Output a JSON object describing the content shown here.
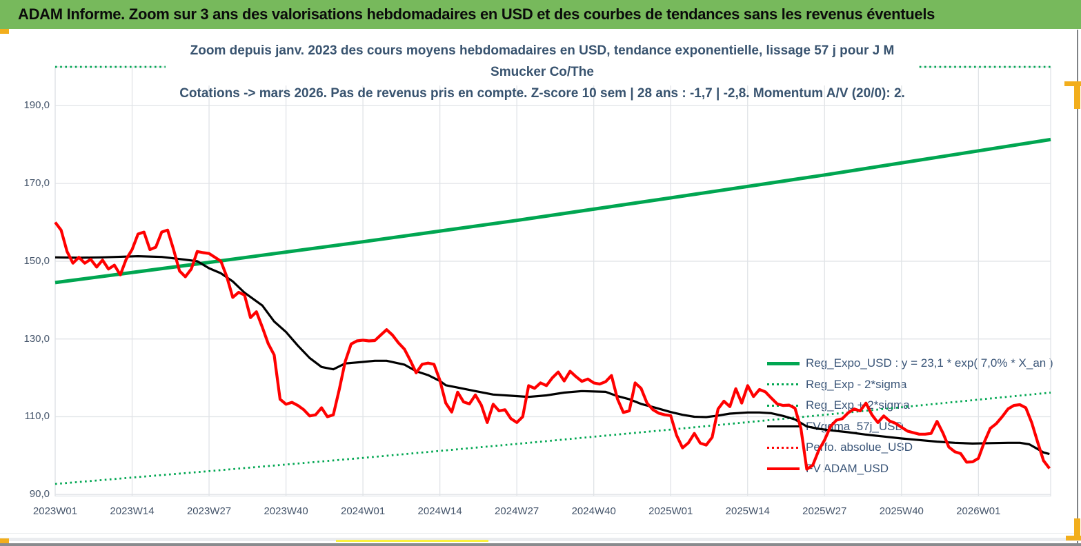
{
  "header": {
    "title": "ADAM Informe. Zoom sur 3 ans des valorisations hebdomadaires en USD et des courbes de tendances sans les revenus éventuels"
  },
  "chart": {
    "title_line1": "Zoom depuis janv. 2023 des cours moyens hebdomadaires en USD, tendance exponentielle, lissage 57 j pour J M Smucker Co/The",
    "title_line2": "Cotations -> mars 2026. Pas de revenus pris en compte. Z-score 10 sem | 28 ans : -1,7 | -2,8. Momentum A/V (20/0): 2."
  },
  "chart_data": {
    "type": "line",
    "title": "Zoom depuis janv. 2023 des cours moyens hebdomadaires en USD, tendance exponentielle, lissage 57 j pour J M Smucker Co/The Cotations -> mars 2026. Pas de revenus pris en compte. Z-score 10 sem | 28 ans : -1,7 | -2,8. Momentum A/V (20/0): 2.",
    "x_unit": "weeks since 2023W01 (weekly cotations, horizon mars 2026)",
    "x_tick_labels": [
      "2023W01",
      "2023W14",
      "2023W27",
      "2023W40",
      "2024W01",
      "2024W14",
      "2024W27",
      "2024W40",
      "2025W01",
      "2025W14",
      "2025W27",
      "2025W40",
      "2026W01"
    ],
    "x_tick_weeks": [
      0,
      13,
      26,
      39,
      52,
      65,
      78,
      91,
      104,
      117,
      130,
      143,
      156
    ],
    "x_range_weeks": [
      0,
      168.2
    ],
    "y_ticks": [
      190,
      170,
      150,
      130,
      110,
      90
    ],
    "y_tick_labels": [
      "190,0",
      "170,0",
      "150,0",
      "130,0",
      "110,0",
      "90,0"
    ],
    "y_axis_range": [
      90,
      190
    ],
    "y_plot_clip": [
      89.6,
      200
    ],
    "grid": true,
    "legend_position": "inside-right",
    "colors": {
      "grid": "#E0E3E7",
      "green": "#00A651",
      "red": "#FF0000",
      "black": "#000000",
      "text": "#3A5578"
    },
    "series": [
      {
        "id": "reg-expo-line",
        "name": "Reg_Expo_USD : y = 23,1 * exp( 7,0% *  X_an )",
        "color": "#00A651",
        "style": "solid",
        "width": 5,
        "points": [
          [
            0,
            144.5
          ],
          [
            26,
            149.7
          ],
          [
            52,
            155.0
          ],
          [
            78,
            160.5
          ],
          [
            104,
            166.3
          ],
          [
            130,
            172.2
          ],
          [
            156,
            178.4
          ],
          [
            168.2,
            181.3
          ]
        ]
      },
      {
        "id": "reg-exp-minus-2sigma-line",
        "name": "Reg_Exp - 2*sigma",
        "color": "#00A651",
        "style": "dotted",
        "width": 2.8,
        "points": [
          [
            0,
            92.7
          ],
          [
            26,
            96.0
          ],
          [
            52,
            99.4
          ],
          [
            78,
            103.0
          ],
          [
            104,
            106.7
          ],
          [
            130,
            110.5
          ],
          [
            156,
            114.4
          ],
          [
            168.2,
            116.2
          ]
        ]
      },
      {
        "id": "reg-exp-plus-2sigma-line",
        "name": "Reg_Exp + 2*sigma",
        "color": "#00A651",
        "style": "dotted",
        "width": 2.8,
        "note": "line lies above plot max, clipped flat at top of plot (~200), hidden behind title box in the middle",
        "points": [
          [
            0,
            200
          ],
          [
            168.2,
            200
          ]
        ]
      },
      {
        "id": "fvgdma-57j-line",
        "name": "FVgdma_57j_USD",
        "color": "#000000",
        "style": "solid",
        "width": 3.2,
        "points": [
          [
            0,
            151.0
          ],
          [
            4,
            150.9
          ],
          [
            8,
            151.0
          ],
          [
            12,
            151.2
          ],
          [
            14,
            151.3
          ],
          [
            18,
            151.1
          ],
          [
            22,
            150.4
          ],
          [
            24,
            150.0
          ],
          [
            26,
            148.2
          ],
          [
            28,
            146.9
          ],
          [
            30,
            144.8
          ],
          [
            32,
            141.9
          ],
          [
            35,
            138.6
          ],
          [
            37,
            134.5
          ],
          [
            39,
            131.8
          ],
          [
            41,
            128.3
          ],
          [
            43,
            125.1
          ],
          [
            45,
            122.8
          ],
          [
            47,
            122.2
          ],
          [
            49,
            123.7
          ],
          [
            52,
            124.1
          ],
          [
            54,
            124.4
          ],
          [
            56,
            124.4
          ],
          [
            59,
            123.4
          ],
          [
            61,
            121.7
          ],
          [
            63,
            120.7
          ],
          [
            65,
            119.2
          ],
          [
            66,
            118.1
          ],
          [
            68,
            117.5
          ],
          [
            71,
            116.6
          ],
          [
            74,
            115.7
          ],
          [
            77,
            115.4
          ],
          [
            80,
            115.1
          ],
          [
            83,
            115.5
          ],
          [
            86,
            116.2
          ],
          [
            89,
            116.6
          ],
          [
            93,
            116.4
          ],
          [
            95,
            115.3
          ],
          [
            97,
            114.5
          ],
          [
            99,
            113.3
          ],
          [
            101,
            112.5
          ],
          [
            104,
            111.2
          ],
          [
            106,
            110.5
          ],
          [
            108,
            110.0
          ],
          [
            110,
            109.9
          ],
          [
            112,
            110.3
          ],
          [
            114,
            110.8
          ],
          [
            117,
            111.1
          ],
          [
            119,
            111.1
          ],
          [
            121,
            110.9
          ],
          [
            123,
            110.2
          ],
          [
            125,
            109.3
          ],
          [
            127,
            107.5
          ],
          [
            129,
            106.9
          ],
          [
            131,
            106.5
          ],
          [
            134,
            106.0
          ],
          [
            137,
            105.4
          ],
          [
            140,
            104.9
          ],
          [
            143,
            104.4
          ],
          [
            146,
            104.0
          ],
          [
            149,
            103.6
          ],
          [
            152,
            103.3
          ],
          [
            155,
            103.1
          ],
          [
            158,
            103.2
          ],
          [
            161,
            103.3
          ],
          [
            163,
            103.3
          ],
          [
            164.6,
            102.9
          ],
          [
            166,
            101.7
          ],
          [
            167,
            100.8
          ],
          [
            168,
            100.4
          ]
        ]
      },
      {
        "id": "perfo-absolue-line",
        "name": "Perfo. absolue_USD",
        "color": "#FF0000",
        "style": "dotted",
        "width": 2.8,
        "note": "coincides with FV ADAM_USD (pas de revenus pris en compte) - not separately visible",
        "points": []
      },
      {
        "id": "fv-adam-line",
        "name": "FV ADAM_USD",
        "color": "#FF0000",
        "style": "solid",
        "width": 4.2,
        "weekly_values_from_2023W01": [
          160,
          158,
          152.5,
          149.5,
          151,
          149.5,
          150.5,
          148.5,
          150.3,
          148,
          149,
          146.5,
          150.5,
          153,
          157,
          157.5,
          153,
          153.6,
          157.5,
          158,
          153,
          147.5,
          146,
          148,
          152.5,
          152.2,
          152,
          151,
          150,
          146,
          140.7,
          142,
          141.3,
          135.5,
          137,
          133,
          128.8,
          125.9,
          114.5,
          113.2,
          113.7,
          112.9,
          111.8,
          110.2,
          110.5,
          112.3,
          110,
          110.5,
          117,
          124.2,
          128.7,
          129.5,
          129.7,
          129.5,
          129.6,
          131,
          132.4,
          131,
          129,
          127.4,
          124.5,
          121.3,
          123.5,
          123.8,
          123.5,
          119.4,
          113.5,
          111.2,
          116.3,
          113.8,
          113.3,
          115.6,
          113,
          108.5,
          113.2,
          111.5,
          111.8,
          109.5,
          108.5,
          110,
          118,
          117.3,
          118.7,
          118,
          120,
          121.5,
          119.2,
          121.7,
          120.3,
          119.1,
          119.7,
          118.7,
          118.4,
          119,
          120.6,
          114.6,
          111.1,
          111.5,
          118.7,
          117.3,
          113.5,
          111.8,
          110.9,
          110.5,
          110.3,
          105.2,
          102,
          103.3,
          105.7,
          103.2,
          102.7,
          104.7,
          112,
          114,
          112.6,
          117.2,
          113.5,
          118,
          115.2,
          117,
          116.4,
          114.8,
          113.3,
          112.9,
          113,
          112.2,
          107,
          96.5,
          97.5,
          101.3,
          104,
          107.5,
          109.1,
          109.5,
          111,
          112,
          111.5,
          113.5,
          110.5,
          108.5,
          110.2,
          108.9,
          108.3,
          107.3,
          106.3,
          105.9,
          105.5,
          105.5,
          105.7,
          108.8,
          105.8,
          102.2,
          101,
          100.5,
          98.3,
          98.4,
          99.3,
          103.5,
          107,
          108.2,
          110,
          112,
          112.9,
          113.1,
          112.3,
          108.5,
          103.5,
          98.7,
          96.7
        ]
      }
    ]
  }
}
